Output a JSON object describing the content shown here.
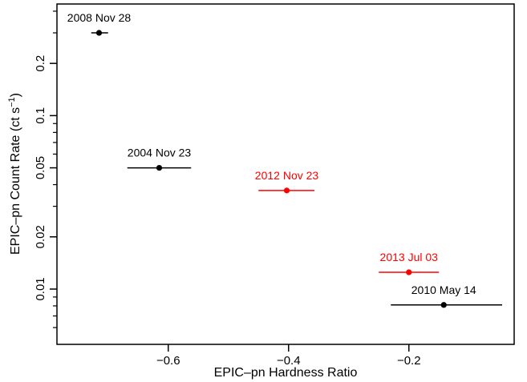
{
  "chart_data": {
    "type": "scatter",
    "xlabel": "EPIC–pn Hardness Ratio",
    "ylabel_main": "EPIC–pn Count Rate (ct s",
    "ylabel_sup": "−1",
    "ylabel_close": ")",
    "yscale": "log",
    "xlim": [
      -0.785,
      -0.025
    ],
    "ylim": [
      0.0048,
      0.44
    ],
    "x_ticks": [
      {
        "value": -0.6,
        "label": "−0.6"
      },
      {
        "value": -0.4,
        "label": "−0.4"
      },
      {
        "value": -0.2,
        "label": "−0.2"
      }
    ],
    "y_ticks": [
      {
        "value": 0.01,
        "label": "0.01"
      },
      {
        "value": 0.02,
        "label": "0.02"
      },
      {
        "value": 0.05,
        "label": "0.05"
      },
      {
        "value": 0.1,
        "label": "0.1"
      },
      {
        "value": 0.2,
        "label": "0.2"
      }
    ],
    "y_minor_ticks": [
      0.006,
      0.007,
      0.008,
      0.009,
      0.03,
      0.04,
      0.06,
      0.07,
      0.08,
      0.09,
      0.3,
      0.4
    ],
    "points": [
      {
        "label": "2008 Nov 28",
        "x": -0.715,
        "xerr_low": -0.728,
        "xerr_high": -0.7,
        "y": 0.3,
        "color": "#000000"
      },
      {
        "label": "2004 Nov 23",
        "x": -0.615,
        "xerr_low": -0.668,
        "xerr_high": -0.562,
        "y": 0.05,
        "color": "#000000"
      },
      {
        "label": "2012 Nov 23",
        "x": -0.403,
        "xerr_low": -0.45,
        "xerr_high": -0.357,
        "y": 0.037,
        "color": "#ff0000"
      },
      {
        "label": "2013 Jul 03",
        "x": -0.2,
        "xerr_low": -0.25,
        "xerr_high": -0.15,
        "y": 0.0125,
        "color": "#ff0000"
      },
      {
        "label": "2010 May 14",
        "x": -0.142,
        "xerr_low": -0.23,
        "xerr_high": -0.045,
        "y": 0.0081,
        "color": "#000000"
      }
    ]
  }
}
